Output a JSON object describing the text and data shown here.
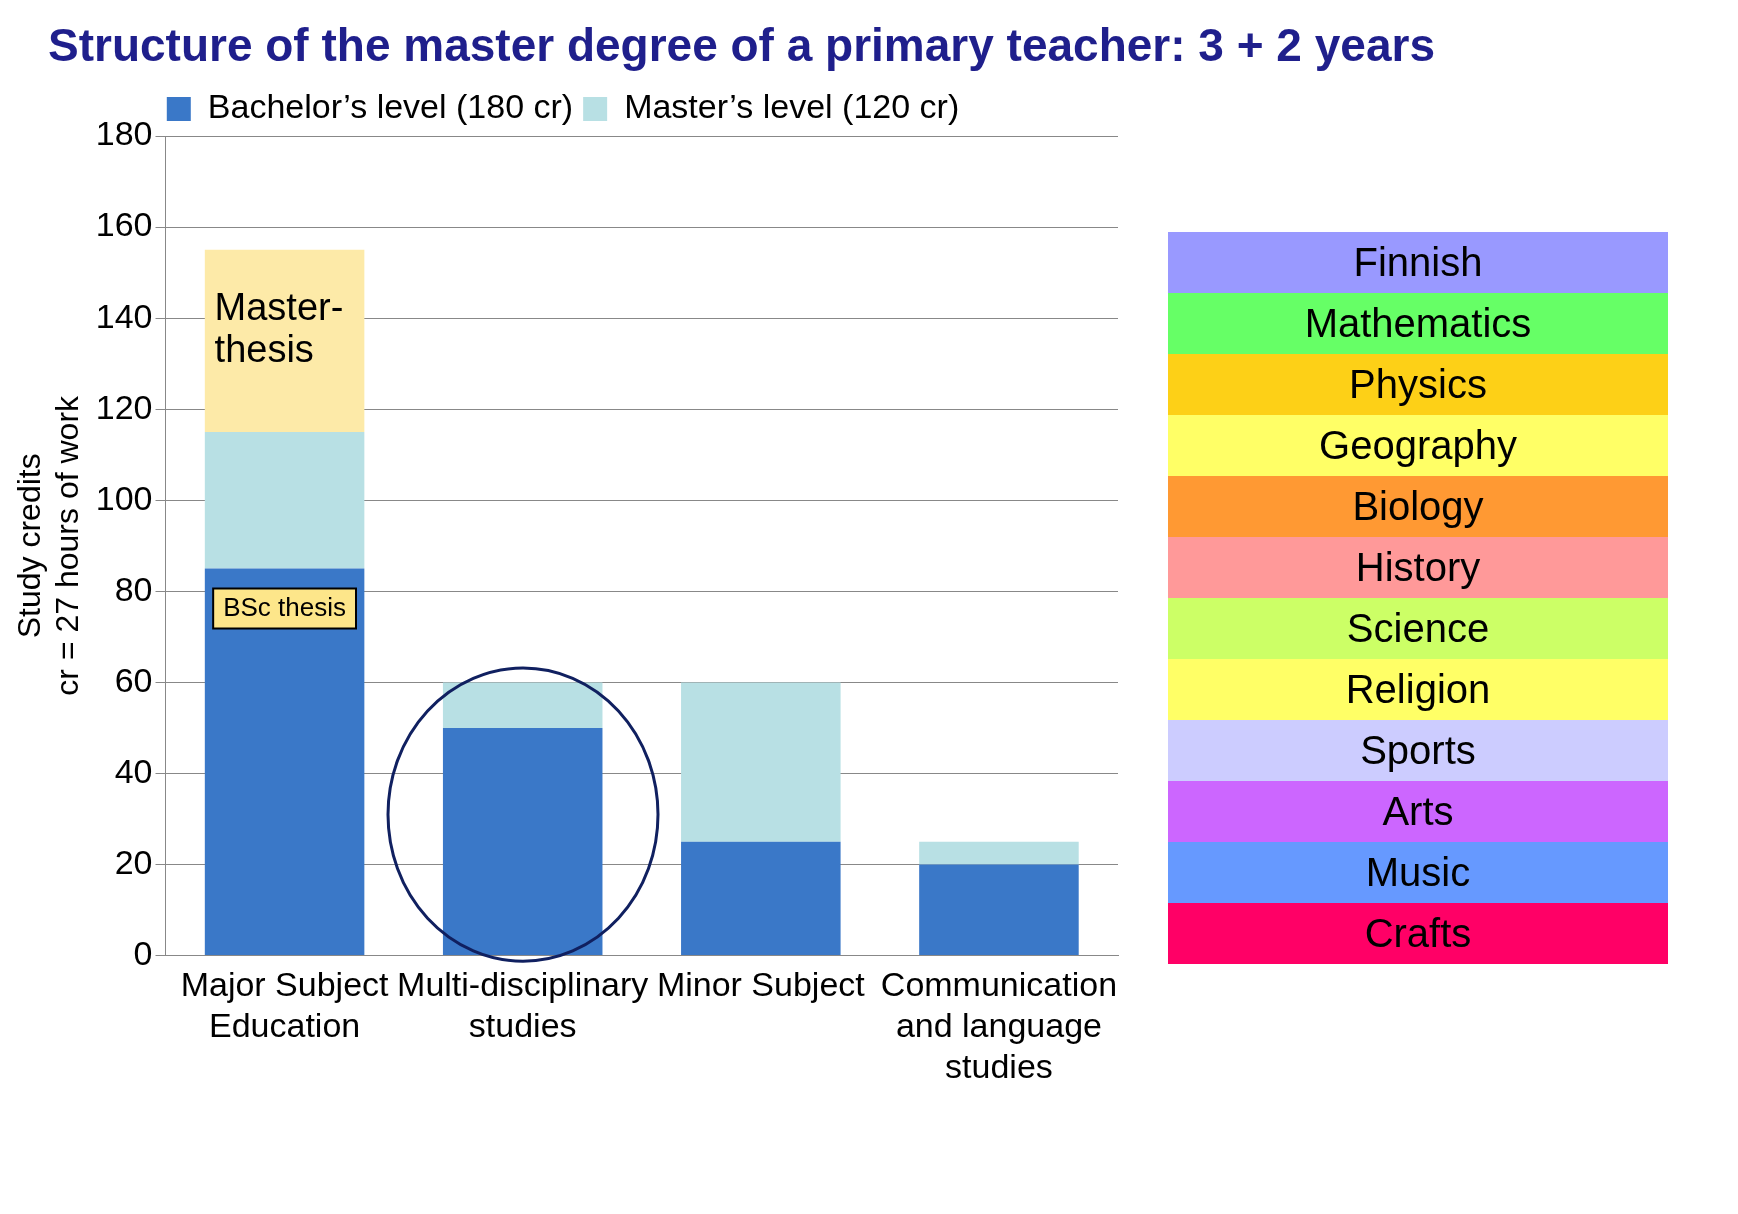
{
  "chart_data": [
    {
      "type": "bar",
      "title": "Structure of the master degree of a primary teacher: 3 + 2 years",
      "ylabel": "Study credits\ncr = 27 hours of work",
      "categories": [
        "Major Subject Education",
        "Multi-disciplinary studies",
        "Minor Subject",
        "Communication and language studies"
      ],
      "stacked": true,
      "series": [
        {
          "name": "Bachelor’s level (180 cr)",
          "color": "#3a78c8",
          "values": [
            85,
            50,
            25,
            20
          ]
        },
        {
          "name": "Master’s level (120 cr)",
          "color": "#b8e0e4",
          "values": [
            30,
            10,
            35,
            5
          ]
        },
        {
          "color": "#fdeaa8",
          "values": [
            40,
            null,
            null,
            null
          ]
        }
      ],
      "ylim": [
        0,
        180
      ],
      "yticks": [
        0,
        20,
        40,
        60,
        80,
        100,
        120,
        140,
        160,
        180
      ],
      "grid": "y",
      "legend": "top",
      "annotations": [
        "Master-thesis",
        "BSc thesis"
      ]
    },
    {
      "type": "other",
      "annotations": [
        "Finnish",
        "Mathematics",
        "Physics",
        "Geography",
        "Biology",
        "History",
        "Science",
        "Religion",
        "Sports",
        "Arts",
        "Music",
        "Crafts"
      ],
      "colors": [
        "#9999ff",
        "#66ff66",
        "#fdd017",
        "#ffff66",
        "#ff9933",
        "#ff9999",
        "#ccff66",
        "#ffff66",
        "#ccccff",
        "#cc66ff",
        "#6699ff",
        "#ff0066"
      ]
    }
  ]
}
